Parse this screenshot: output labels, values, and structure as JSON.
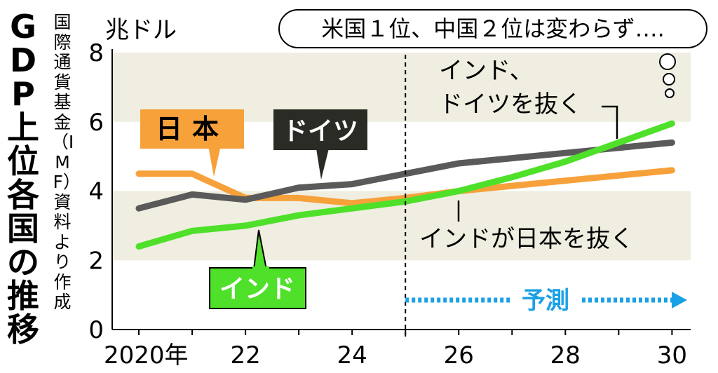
{
  "title": "GDP上位各国の推移",
  "source": "国際通貨基金（IMF）資料より作成",
  "speech_bubble": "米国１位、中国２位は変わらず….",
  "colors": {
    "japan": "#f7a13b",
    "germany": "#5a5a5a",
    "india": "#4fe02a",
    "forecast": "#1aa0e6",
    "band": "#efeee0"
  },
  "chart_data": {
    "type": "line",
    "unit": "兆ドル",
    "x": [
      2020,
      2021,
      2022,
      2023,
      2024,
      2025,
      2026,
      2027,
      2028,
      2029,
      2030
    ],
    "xticks": [
      "2020年",
      "22",
      "24",
      "26",
      "28",
      "30"
    ],
    "xtick_values": [
      2020,
      2022,
      2024,
      2026,
      2028,
      2030
    ],
    "xlim": [
      2019.5,
      2030.35
    ],
    "ylim": [
      0,
      8
    ],
    "yticks": [
      0,
      2,
      4,
      6,
      8
    ],
    "series": [
      {
        "name": "日本",
        "key": "japan",
        "values": [
          4.5,
          4.5,
          3.8,
          3.8,
          3.65,
          3.8,
          4.0,
          4.15,
          4.3,
          4.45,
          4.6
        ]
      },
      {
        "name": "ドイツ",
        "key": "germany",
        "values": [
          3.5,
          3.9,
          3.75,
          4.1,
          4.2,
          4.5,
          4.8,
          4.95,
          5.1,
          5.25,
          5.4
        ]
      },
      {
        "name": "インド",
        "key": "india",
        "values": [
          2.4,
          2.85,
          3.0,
          3.3,
          3.5,
          3.7,
          4.0,
          4.4,
          4.85,
          5.4,
          5.95
        ]
      }
    ],
    "forecast": {
      "label": "予測",
      "start": 2025
    },
    "annotations": [
      "インド、",
      "ドイツを抜く",
      "インドが日本を抜く"
    ]
  }
}
